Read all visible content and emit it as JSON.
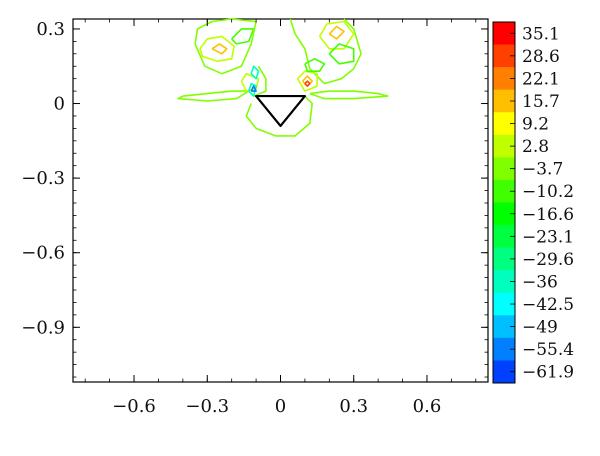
{
  "chart_data": {
    "type": "contour",
    "title": "",
    "xlabel": "",
    "ylabel": "",
    "xlim": [
      -0.85,
      0.85
    ],
    "ylim": [
      -1.12,
      0.34
    ],
    "x_ticks": [
      {
        "value": -0.6,
        "label": "−0.6"
      },
      {
        "value": -0.3,
        "label": "−0.3"
      },
      {
        "value": 0,
        "label": "0"
      },
      {
        "value": 0.3,
        "label": "0.3"
      },
      {
        "value": 0.6,
        "label": "0.6"
      }
    ],
    "y_ticks": [
      {
        "value": 0.3,
        "label": "0.3"
      },
      {
        "value": 0,
        "label": "0"
      },
      {
        "value": -0.3,
        "label": "−0.3"
      },
      {
        "value": -0.6,
        "label": "−0.6"
      },
      {
        "value": -0.9,
        "label": "−0.9"
      }
    ],
    "colorbar": {
      "levels": [
        {
          "label": "35.1",
          "color": "#ff0000"
        },
        {
          "label": "28.6",
          "color": "#ff4000"
        },
        {
          "label": "22.1",
          "color": "#ff8000"
        },
        {
          "label": "15.7",
          "color": "#ffbf00"
        },
        {
          "label": "9.2",
          "color": "#ffff00"
        },
        {
          "label": "2.8",
          "color": "#bfff00"
        },
        {
          "label": "−3.7",
          "color": "#80ff00"
        },
        {
          "label": "−10.2",
          "color": "#40ff00"
        },
        {
          "label": "−16.6",
          "color": "#00ff00"
        },
        {
          "label": "−23.1",
          "color": "#00ff40"
        },
        {
          "label": "−29.6",
          "color": "#00ff80"
        },
        {
          "label": "−36",
          "color": "#00ffbf"
        },
        {
          "label": "−42.5",
          "color": "#00ffff"
        },
        {
          "label": "−49",
          "color": "#00bfff"
        },
        {
          "label": "−55.4",
          "color": "#0080ff"
        },
        {
          "label": "−61.9",
          "color": "#0040ff"
        }
      ]
    },
    "obstacle": {
      "shape": "triangle",
      "vertices": [
        [
          -0.1,
          0.03
        ],
        [
          0.1,
          0.03
        ],
        [
          0,
          -0.09
        ]
      ],
      "fill": "#ffffff",
      "edge": "#000000"
    },
    "contours": [
      {
        "color": "#bfff00",
        "points": [
          [
            -0.33,
            0.22
          ],
          [
            -0.3,
            0.26
          ],
          [
            -0.24,
            0.27
          ],
          [
            -0.19,
            0.23
          ],
          [
            -0.2,
            0.18
          ],
          [
            -0.26,
            0.17
          ],
          [
            -0.32,
            0.19
          ],
          [
            -0.33,
            0.22
          ]
        ]
      },
      {
        "color": "#ffbf00",
        "points": [
          [
            -0.28,
            0.22
          ],
          [
            -0.25,
            0.24
          ],
          [
            -0.22,
            0.22
          ],
          [
            -0.24,
            0.2
          ],
          [
            -0.28,
            0.22
          ]
        ]
      },
      {
        "color": "#40ff00",
        "points": [
          [
            -0.2,
            0.26
          ],
          [
            -0.16,
            0.3
          ],
          [
            -0.11,
            0.3
          ],
          [
            -0.13,
            0.25
          ],
          [
            -0.18,
            0.24
          ],
          [
            -0.2,
            0.26
          ]
        ]
      },
      {
        "color": "#80ff00",
        "points": [
          [
            -0.35,
            0.24
          ],
          [
            -0.34,
            0.3
          ],
          [
            -0.28,
            0.33
          ],
          [
            -0.2,
            0.34
          ],
          [
            -0.1,
            0.33
          ],
          [
            -0.12,
            0.24
          ],
          [
            -0.16,
            0.15
          ],
          [
            -0.24,
            0.12
          ],
          [
            -0.31,
            0.15
          ],
          [
            -0.35,
            0.24
          ]
        ]
      },
      {
        "color": "#80ff00",
        "points": [
          [
            -0.4,
            0.03
          ],
          [
            -0.3,
            0.04
          ],
          [
            -0.2,
            0.05
          ],
          [
            -0.13,
            0.05
          ],
          [
            -0.18,
            0.02
          ],
          [
            -0.3,
            0.01
          ],
          [
            -0.42,
            0.02
          ],
          [
            -0.4,
            0.03
          ]
        ]
      },
      {
        "color": "#80ff00",
        "points": [
          [
            -0.09,
            0.15
          ],
          [
            -0.06,
            0.1
          ],
          [
            -0.06,
            0.05
          ],
          [
            -0.11,
            0.03
          ]
        ]
      },
      {
        "color": "#bfff00",
        "points": [
          [
            -0.16,
            0.09
          ],
          [
            -0.14,
            0.12
          ],
          [
            -0.09,
            0.1
          ],
          [
            -0.1,
            0.06
          ],
          [
            -0.14,
            0.05
          ],
          [
            -0.16,
            0.09
          ]
        ]
      },
      {
        "color": "#00ffbf",
        "points": [
          [
            -0.13,
            0.05
          ],
          [
            -0.12,
            0.08
          ],
          [
            -0.1,
            0.07
          ],
          [
            -0.11,
            0.03
          ],
          [
            -0.13,
            0.05
          ]
        ]
      },
      {
        "color": "#0080ff",
        "points": [
          [
            -0.12,
            0.05
          ],
          [
            -0.11,
            0.07
          ],
          [
            -0.1,
            0.05
          ],
          [
            -0.12,
            0.05
          ]
        ]
      },
      {
        "color": "#80ff00",
        "points": [
          [
            -0.12,
            0.0
          ],
          [
            -0.14,
            -0.05
          ],
          [
            -0.1,
            -0.1
          ],
          [
            -0.02,
            -0.13
          ],
          [
            0.06,
            -0.13
          ],
          [
            0.12,
            -0.08
          ],
          [
            0.13,
            0.0
          ],
          [
            0.1,
            0.03
          ]
        ]
      },
      {
        "color": "#80ff00",
        "points": [
          [
            0.04,
            0.34
          ],
          [
            0.06,
            0.28
          ],
          [
            0.1,
            0.22
          ],
          [
            0.12,
            0.14
          ],
          [
            0.18,
            0.08
          ],
          [
            0.25,
            0.1
          ],
          [
            0.3,
            0.14
          ],
          [
            0.33,
            0.2
          ],
          [
            0.3,
            0.3
          ],
          [
            0.26,
            0.34
          ]
        ]
      },
      {
        "color": "#bfff00",
        "points": [
          [
            0.16,
            0.27
          ],
          [
            0.19,
            0.32
          ],
          [
            0.26,
            0.33
          ],
          [
            0.3,
            0.28
          ],
          [
            0.26,
            0.22
          ],
          [
            0.2,
            0.22
          ],
          [
            0.16,
            0.27
          ]
        ]
      },
      {
        "color": "#ffbf00",
        "points": [
          [
            0.2,
            0.28
          ],
          [
            0.23,
            0.31
          ],
          [
            0.26,
            0.29
          ],
          [
            0.23,
            0.26
          ],
          [
            0.2,
            0.28
          ]
        ]
      },
      {
        "color": "#40ff00",
        "points": [
          [
            0.2,
            0.2
          ],
          [
            0.24,
            0.24
          ],
          [
            0.3,
            0.22
          ],
          [
            0.3,
            0.17
          ],
          [
            0.24,
            0.16
          ],
          [
            0.2,
            0.2
          ]
        ]
      },
      {
        "color": "#bfff00",
        "points": [
          [
            0.07,
            0.1
          ],
          [
            0.1,
            0.13
          ],
          [
            0.15,
            0.12
          ],
          [
            0.15,
            0.07
          ],
          [
            0.1,
            0.05
          ],
          [
            0.07,
            0.1
          ]
        ]
      },
      {
        "color": "#ffbf00",
        "points": [
          [
            0.09,
            0.09
          ],
          [
            0.11,
            0.11
          ],
          [
            0.13,
            0.09
          ],
          [
            0.11,
            0.07
          ],
          [
            0.09,
            0.09
          ]
        ]
      },
      {
        "color": "#ff4000",
        "points": [
          [
            0.1,
            0.08
          ],
          [
            0.11,
            0.09
          ],
          [
            0.12,
            0.08
          ],
          [
            0.11,
            0.07
          ],
          [
            0.1,
            0.08
          ]
        ]
      },
      {
        "color": "#80ff00",
        "points": [
          [
            0.12,
            0.04
          ],
          [
            0.2,
            0.05
          ],
          [
            0.3,
            0.05
          ],
          [
            0.4,
            0.04
          ],
          [
            0.44,
            0.03
          ],
          [
            0.3,
            0.02
          ],
          [
            0.18,
            0.02
          ],
          [
            0.12,
            0.04
          ]
        ]
      },
      {
        "color": "#40ff00",
        "points": [
          [
            0.1,
            0.16
          ],
          [
            0.14,
            0.18
          ],
          [
            0.18,
            0.16
          ],
          [
            0.16,
            0.13
          ],
          [
            0.11,
            0.13
          ],
          [
            0.1,
            0.16
          ]
        ]
      },
      {
        "color": "#00ffbf",
        "points": [
          [
            -0.12,
            0.12
          ],
          [
            -0.11,
            0.15
          ],
          [
            -0.09,
            0.13
          ],
          [
            -0.1,
            0.1
          ],
          [
            -0.12,
            0.12
          ]
        ]
      }
    ]
  }
}
